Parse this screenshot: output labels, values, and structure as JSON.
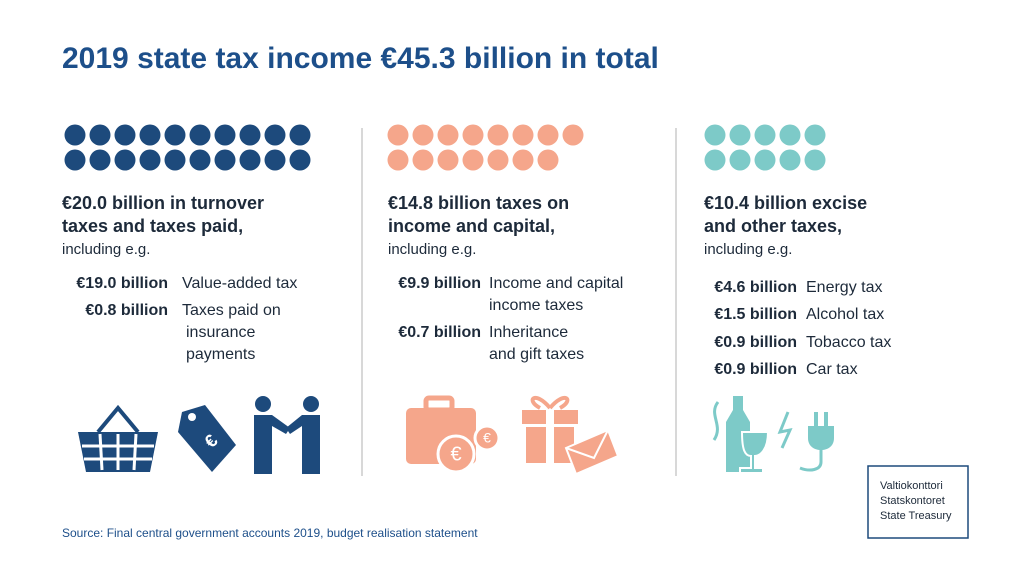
{
  "header": {
    "title": "2019 state tax income €45.3 billion in total"
  },
  "columns": [
    {
      "dot_count": 20,
      "color": "#1d4a7c",
      "heading": [
        "€20.0 billion in turnover",
        "taxes and taxes paid,"
      ],
      "note": "including e.g.",
      "items": [
        {
          "amount": "€19.0 billion",
          "label": [
            "Value-added tax"
          ]
        },
        {
          "amount": "€0.8 billion",
          "label": [
            "Taxes paid on",
            "insurance",
            "payments"
          ]
        }
      ]
    },
    {
      "dot_count": 15,
      "color": "#f5a68b",
      "heading": [
        "€14.8 billion taxes on",
        "income and capital,"
      ],
      "note": "including e.g.",
      "items": [
        {
          "amount": "€9.9 billion",
          "label": [
            "Income and capital",
            "income taxes"
          ]
        },
        {
          "amount": "€0.7 billion",
          "label": [
            "Inheritance",
            "and gift taxes"
          ]
        }
      ]
    },
    {
      "dot_count": 10,
      "color": "#7dcac8",
      "heading": [
        "€10.4 billion excise",
        "and other taxes,"
      ],
      "note": "including e.g.",
      "items": [
        {
          "amount": "€4.6 billion",
          "label": [
            "Energy tax"
          ]
        },
        {
          "amount": "€1.5 billion",
          "label": [
            "Alcohol tax"
          ]
        },
        {
          "amount": "€0.9 billion",
          "label": [
            "Tobacco tax"
          ]
        },
        {
          "amount": "€0.9 billion",
          "label": [
            "Car tax"
          ]
        }
      ]
    }
  ],
  "logo": [
    "Valtiokonttori",
    "Statskontoret",
    "State Treasury"
  ],
  "source": "Source: Final central government accounts 2019, budget realisation statement"
}
